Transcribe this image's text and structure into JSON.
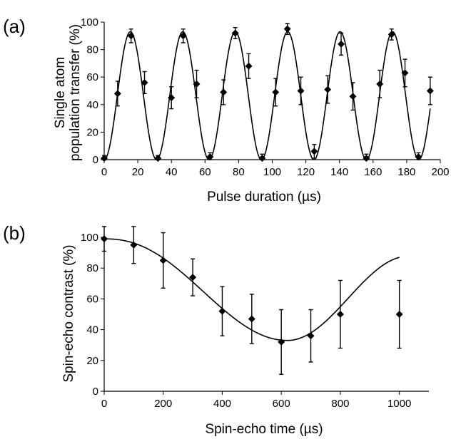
{
  "chart_data": [
    {
      "panel_label": "(a)",
      "type": "scatter",
      "xlabel": "Pulse duration (µs)",
      "ylabel_lines": [
        "Single atom",
        "population transfer (%)"
      ],
      "xlim": [
        0,
        200
      ],
      "ylim": [
        0,
        100
      ],
      "xticks": [
        0,
        20,
        40,
        60,
        80,
        100,
        120,
        140,
        160,
        180,
        200
      ],
      "yticks": [
        0,
        20,
        40,
        60,
        80,
        100
      ],
      "grid": false,
      "series": [
        {
          "marker": "diamond",
          "points": [
            {
              "x": 0,
              "y": 1,
              "err": 2
            },
            {
              "x": 8,
              "y": 48,
              "err": 9
            },
            {
              "x": 16,
              "y": 90,
              "err": 5
            },
            {
              "x": 24,
              "y": 56,
              "err": 8
            },
            {
              "x": 32,
              "y": 1,
              "err": 2
            },
            {
              "x": 40,
              "y": 45,
              "err": 8
            },
            {
              "x": 47,
              "y": 90,
              "err": 5
            },
            {
              "x": 55,
              "y": 55,
              "err": 10
            },
            {
              "x": 63,
              "y": 2,
              "err": 3
            },
            {
              "x": 71,
              "y": 49,
              "err": 9
            },
            {
              "x": 78,
              "y": 92,
              "err": 4
            },
            {
              "x": 86,
              "y": 68,
              "err": 9
            },
            {
              "x": 94,
              "y": 1,
              "err": 3
            },
            {
              "x": 102,
              "y": 49,
              "err": 10
            },
            {
              "x": 109,
              "y": 95,
              "err": 4
            },
            {
              "x": 117,
              "y": 50,
              "err": 10
            },
            {
              "x": 125,
              "y": 6,
              "err": 5
            },
            {
              "x": 133,
              "y": 51,
              "err": 10
            },
            {
              "x": 141,
              "y": 84,
              "err": 8
            },
            {
              "x": 148,
              "y": 46,
              "err": 10
            },
            {
              "x": 156,
              "y": 1,
              "err": 3
            },
            {
              "x": 164,
              "y": 55,
              "err": 10
            },
            {
              "x": 171,
              "y": 91,
              "err": 4
            },
            {
              "x": 179,
              "y": 63,
              "err": 10
            },
            {
              "x": 187,
              "y": 2,
              "err": 3
            },
            {
              "x": 194,
              "y": 50,
              "err": 10
            }
          ]
        }
      ],
      "fit": {
        "style": "line",
        "amplitude": 93,
        "period": 31.2
      }
    },
    {
      "panel_label": "(b)",
      "type": "scatter",
      "xlabel": "Spin-echo time (µs)",
      "ylabel": "Spin-echo contrast (%)",
      "xlim": [
        0,
        1100
      ],
      "ylim": [
        0,
        100
      ],
      "xticks": [
        0,
        200,
        400,
        600,
        800,
        1000
      ],
      "yticks": [
        0,
        20,
        40,
        60,
        80,
        100
      ],
      "grid": false,
      "series": [
        {
          "marker": "diamond",
          "points": [
            {
              "x": 0,
              "y": 99,
              "err": 8
            },
            {
              "x": 100,
              "y": 95,
              "err": 12
            },
            {
              "x": 200,
              "y": 85,
              "err": 18
            },
            {
              "x": 300,
              "y": 74,
              "err": 12
            },
            {
              "x": 400,
              "y": 52,
              "err": 16
            },
            {
              "x": 500,
              "y": 47,
              "err": 16
            },
            {
              "x": 600,
              "y": 32,
              "err": 21
            },
            {
              "x": 700,
              "y": 36,
              "err": 17
            },
            {
              "x": 800,
              "y": 50,
              "err": 22
            },
            {
              "x": 1000,
              "y": 50,
              "err": 22
            }
          ]
        }
      ],
      "fit": {
        "style": "line",
        "x_start": 0,
        "x_end": 1000,
        "min_x": 620,
        "min_y": 33,
        "start_y": 99,
        "end_y": 87
      }
    }
  ]
}
